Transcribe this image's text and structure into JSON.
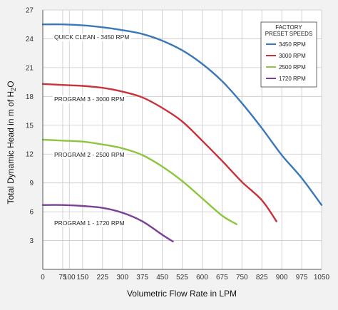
{
  "chart_data": {
    "type": "line",
    "xlabel": "Volumetric Flow Rate in LPM",
    "ylabel_main": "Total Dynamic Head in m of H",
    "ylabel_sub": "2",
    "ylabel_end": "O",
    "xlim": [
      0,
      1050
    ],
    "ylim": [
      0,
      27
    ],
    "x_ticks": [
      0,
      75,
      100,
      150,
      225,
      300,
      375,
      450,
      525,
      600,
      675,
      750,
      825,
      900,
      975,
      1050
    ],
    "x_tick_labels": [
      "0",
      "75",
      "100",
      "150",
      "225",
      "300",
      "375",
      "450",
      "525",
      "600",
      "675",
      "750",
      "825",
      "900",
      "975",
      "1050"
    ],
    "y_ticks": [
      3,
      6,
      9,
      12,
      15,
      18,
      21,
      24,
      27
    ],
    "y_tick_labels": [
      "3",
      "6",
      "9",
      "12",
      "15",
      "18",
      "21",
      "24",
      "27"
    ],
    "grid": true,
    "legend_placement": "top-right",
    "legend_title_1": "FACTORY",
    "legend_title_2": "PRESET SPEEDS",
    "series": [
      {
        "name": "3450 RPM",
        "annotation": "QUICK CLEAN - 3450 RPM",
        "color": "#3a78b8",
        "x": [
          0,
          75,
          150,
          225,
          300,
          375,
          450,
          525,
          600,
          675,
          750,
          825,
          900,
          975,
          1050
        ],
        "y": [
          25.5,
          25.5,
          25.4,
          25.2,
          24.9,
          24.5,
          23.8,
          22.8,
          21.4,
          19.6,
          17.3,
          14.7,
          11.9,
          9.5,
          6.7
        ]
      },
      {
        "name": "3000 RPM",
        "annotation": "PROGRAM 3 - 3000 RPM",
        "color": "#c8323a",
        "x": [
          0,
          75,
          150,
          225,
          300,
          375,
          450,
          525,
          600,
          675,
          750,
          825,
          880
        ],
        "y": [
          19.3,
          19.2,
          19.1,
          18.9,
          18.5,
          17.9,
          16.8,
          15.4,
          13.4,
          11.3,
          9.1,
          7.2,
          5.0
        ]
      },
      {
        "name": "2500 RPM",
        "annotation": "PROGRAM 2 - 2500 RPM",
        "color": "#8cc63f",
        "x": [
          0,
          75,
          150,
          225,
          300,
          375,
          450,
          525,
          600,
          675,
          730
        ],
        "y": [
          13.5,
          13.4,
          13.3,
          13.0,
          12.6,
          11.9,
          10.7,
          9.2,
          7.4,
          5.6,
          4.7
        ]
      },
      {
        "name": "1720 RPM",
        "annotation": "PROGRAM 1 - 1720 RPM",
        "color": "#7b3f98",
        "x": [
          0,
          75,
          150,
          225,
          300,
          375,
          450,
          490
        ],
        "y": [
          6.7,
          6.7,
          6.6,
          6.4,
          5.9,
          5.0,
          3.6,
          2.9
        ]
      }
    ]
  }
}
